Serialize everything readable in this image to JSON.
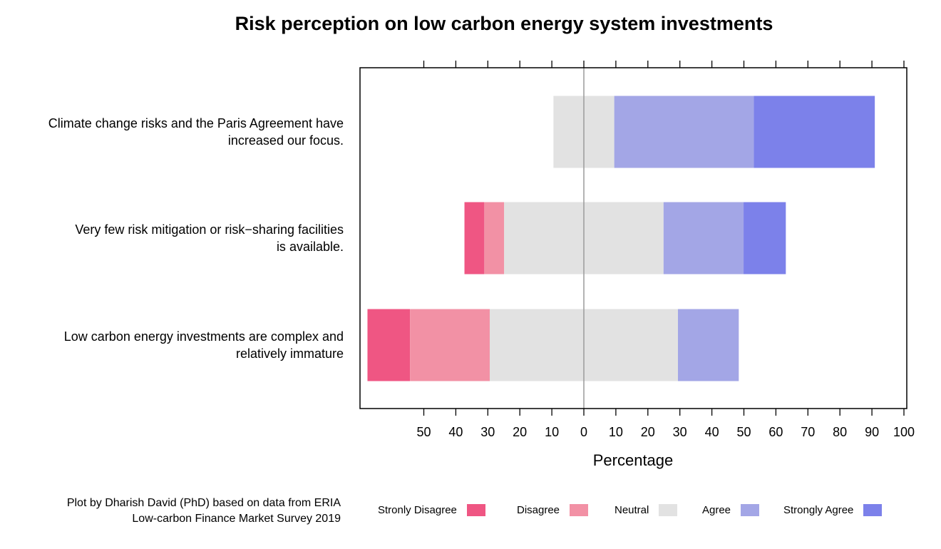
{
  "chart_data": {
    "type": "bar",
    "orientation": "horizontal-diverging",
    "title": "Risk perception on low carbon energy system investments",
    "xlabel": "Percentage",
    "categories": [
      [
        "Climate change risks and the Paris Agreement have",
        "increased our focus."
      ],
      [
        "Very few risk mitigation or risk−sharing facilities",
        "is available."
      ],
      [
        "Low carbon energy investments are complex and",
        "relatively immature"
      ]
    ],
    "series": [
      {
        "name": "Stronly Disagree",
        "color": "#ef5683",
        "values": [
          0,
          6.2,
          13.3
        ]
      },
      {
        "name": "Disagree",
        "color": "#f291a5",
        "values": [
          0,
          6.2,
          24.9
        ]
      },
      {
        "name": "Neutral",
        "color": "#e2e2e2",
        "values": [
          19,
          49.8,
          58.8
        ]
      },
      {
        "name": "Agree",
        "color": "#a3a6e6",
        "values": [
          43.6,
          25,
          19
        ]
      },
      {
        "name": "Strongly Agree",
        "color": "#7c81ea",
        "values": [
          37.8,
          13.2,
          0
        ]
      }
    ],
    "xticks": [
      {
        "value": -50,
        "label": "50"
      },
      {
        "value": -40,
        "label": "40"
      },
      {
        "value": -30,
        "label": "30"
      },
      {
        "value": -20,
        "label": "20"
      },
      {
        "value": -10,
        "label": "10"
      },
      {
        "value": 0,
        "label": "0"
      },
      {
        "value": 10,
        "label": "10"
      },
      {
        "value": 20,
        "label": "20"
      },
      {
        "value": 30,
        "label": "30"
      },
      {
        "value": 40,
        "label": "40"
      },
      {
        "value": 50,
        "label": "50"
      },
      {
        "value": 60,
        "label": "60"
      },
      {
        "value": 70,
        "label": "70"
      },
      {
        "value": 80,
        "label": "80"
      },
      {
        "value": 90,
        "label": "90"
      },
      {
        "value": 100,
        "label": "100"
      }
    ],
    "xlim": [
      -70,
      101
    ],
    "neutral_split": "centered at 0",
    "legend_position": "bottom",
    "grid": false
  },
  "credit": {
    "line1": "Plot by Dharish David (PhD) based on data from ERIA",
    "line2": "Low-carbon Finance Market Survey 2019"
  }
}
